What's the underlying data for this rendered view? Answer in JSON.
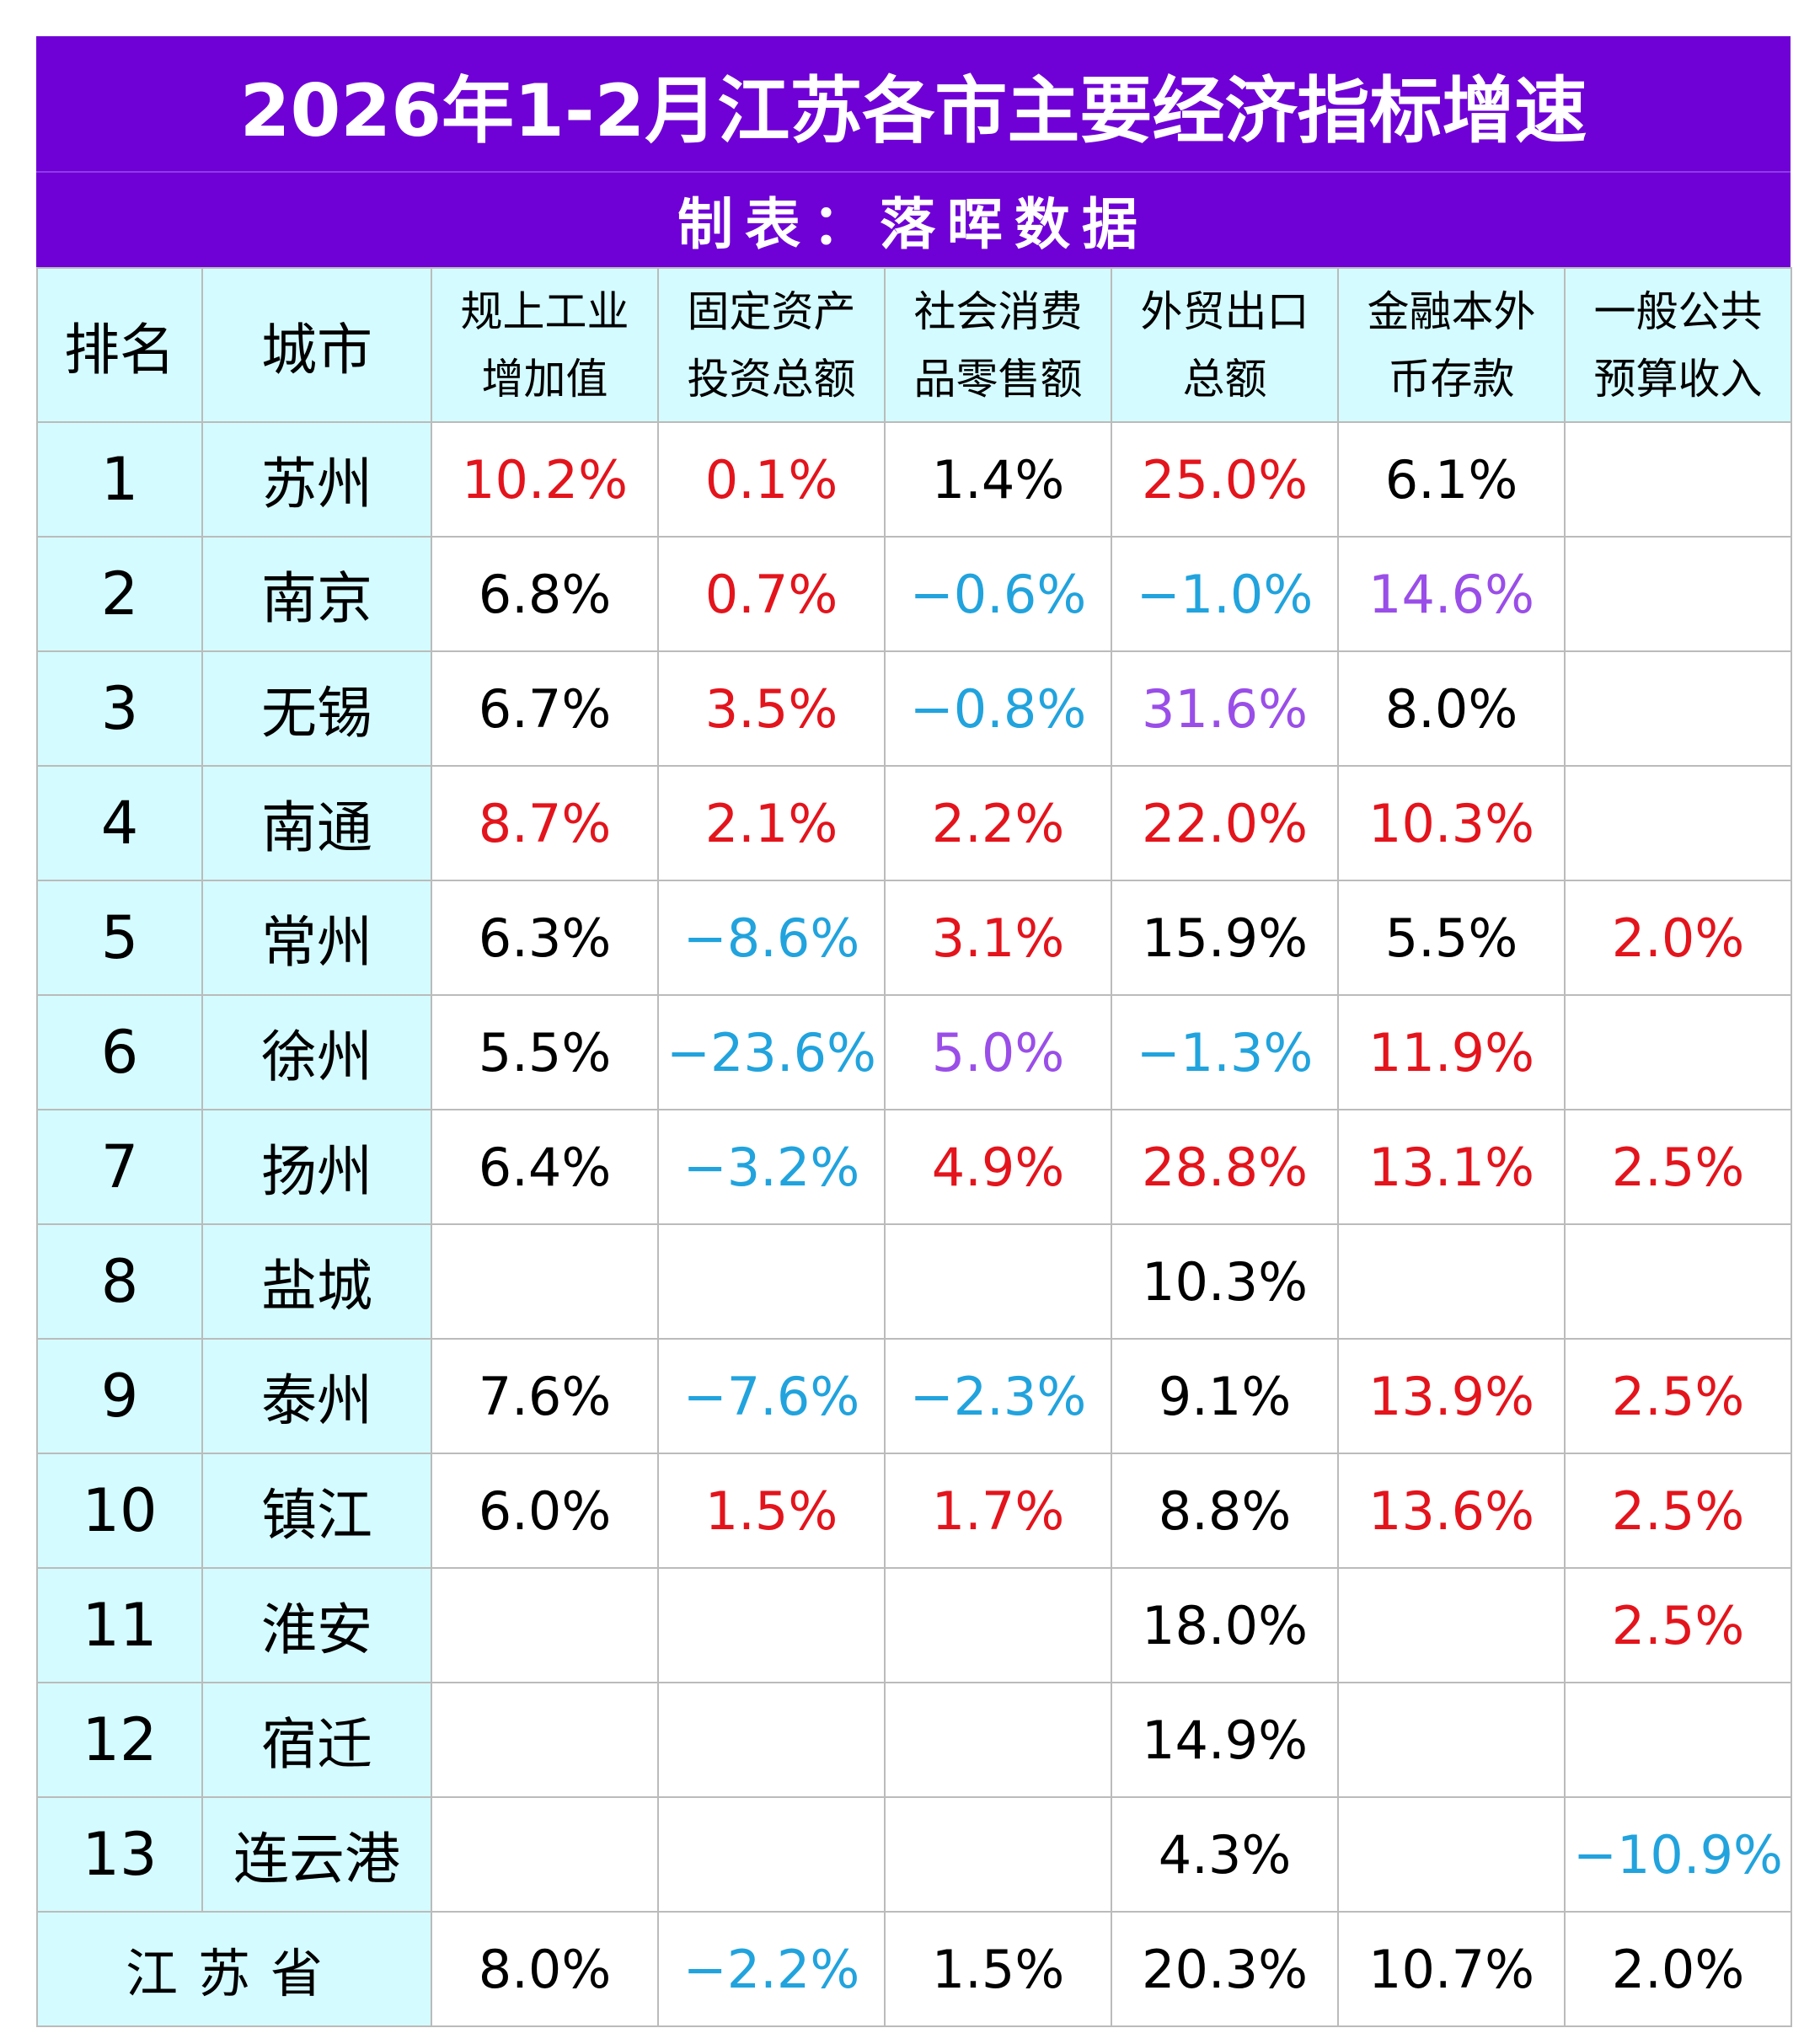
{
  "chart_data": {
    "type": "table",
    "title": "2026年1-2月江苏各市主要经济指标增速",
    "subtitle": "制表：落晖数据",
    "header": {
      "rank": "排名",
      "city": "城市",
      "columns": [
        [
          "规上工业",
          "增加值"
        ],
        [
          "固定资产",
          "投资总额"
        ],
        [
          "社会消费",
          "品零售额"
        ],
        [
          "外贸出口",
          "总额"
        ],
        [
          "金融本外",
          "币存款"
        ],
        [
          "一般公共",
          "预算收入"
        ]
      ]
    },
    "rows": [
      {
        "rank": "1",
        "city": "苏州",
        "cells": [
          [
            "10.2%",
            "r"
          ],
          [
            "0.1%",
            "r"
          ],
          [
            "1.4%",
            "k"
          ],
          [
            "25.0%",
            "r"
          ],
          [
            "6.1%",
            "k"
          ],
          [
            "",
            ""
          ]
        ]
      },
      {
        "rank": "2",
        "city": "南京",
        "cells": [
          [
            "6.8%",
            "k"
          ],
          [
            "0.7%",
            "r"
          ],
          [
            "−0.6%",
            "b"
          ],
          [
            "−1.0%",
            "b"
          ],
          [
            "14.6%",
            "p"
          ],
          [
            "",
            ""
          ]
        ]
      },
      {
        "rank": "3",
        "city": "无锡",
        "cells": [
          [
            "6.7%",
            "k"
          ],
          [
            "3.5%",
            "r"
          ],
          [
            "−0.8%",
            "b"
          ],
          [
            "31.6%",
            "p"
          ],
          [
            "8.0%",
            "k"
          ],
          [
            "",
            ""
          ]
        ]
      },
      {
        "rank": "4",
        "city": "南通",
        "cells": [
          [
            "8.7%",
            "r"
          ],
          [
            "2.1%",
            "r"
          ],
          [
            "2.2%",
            "r"
          ],
          [
            "22.0%",
            "r"
          ],
          [
            "10.3%",
            "r"
          ],
          [
            "",
            ""
          ]
        ]
      },
      {
        "rank": "5",
        "city": "常州",
        "cells": [
          [
            "6.3%",
            "k"
          ],
          [
            "−8.6%",
            "b"
          ],
          [
            "3.1%",
            "r"
          ],
          [
            "15.9%",
            "k"
          ],
          [
            "5.5%",
            "k"
          ],
          [
            "2.0%",
            "r"
          ]
        ]
      },
      {
        "rank": "6",
        "city": "徐州",
        "cells": [
          [
            "5.5%",
            "k"
          ],
          [
            "−23.6%",
            "b"
          ],
          [
            "5.0%",
            "p"
          ],
          [
            "−1.3%",
            "b"
          ],
          [
            "11.9%",
            "r"
          ],
          [
            "",
            ""
          ]
        ]
      },
      {
        "rank": "7",
        "city": "扬州",
        "cells": [
          [
            "6.4%",
            "k"
          ],
          [
            "−3.2%",
            "b"
          ],
          [
            "4.9%",
            "r"
          ],
          [
            "28.8%",
            "r"
          ],
          [
            "13.1%",
            "r"
          ],
          [
            "2.5%",
            "r"
          ]
        ]
      },
      {
        "rank": "8",
        "city": "盐城",
        "cells": [
          [
            "",
            ""
          ],
          [
            "",
            ""
          ],
          [
            "",
            ""
          ],
          [
            "10.3%",
            "k"
          ],
          [
            "",
            ""
          ],
          [
            "",
            ""
          ]
        ]
      },
      {
        "rank": "9",
        "city": "泰州",
        "cells": [
          [
            "7.6%",
            "k"
          ],
          [
            "−7.6%",
            "b"
          ],
          [
            "−2.3%",
            "b"
          ],
          [
            "9.1%",
            "k"
          ],
          [
            "13.9%",
            "r"
          ],
          [
            "2.5%",
            "r"
          ]
        ]
      },
      {
        "rank": "10",
        "city": "镇江",
        "cells": [
          [
            "6.0%",
            "k"
          ],
          [
            "1.5%",
            "r"
          ],
          [
            "1.7%",
            "r"
          ],
          [
            "8.8%",
            "k"
          ],
          [
            "13.6%",
            "r"
          ],
          [
            "2.5%",
            "r"
          ]
        ]
      },
      {
        "rank": "11",
        "city": "淮安",
        "cells": [
          [
            "",
            ""
          ],
          [
            "",
            ""
          ],
          [
            "",
            ""
          ],
          [
            "18.0%",
            "k"
          ],
          [
            "",
            ""
          ],
          [
            "2.5%",
            "r"
          ]
        ]
      },
      {
        "rank": "12",
        "city": "宿迁",
        "cells": [
          [
            "",
            ""
          ],
          [
            "",
            ""
          ],
          [
            "",
            ""
          ],
          [
            "14.9%",
            "k"
          ],
          [
            "",
            ""
          ],
          [
            "",
            ""
          ]
        ]
      },
      {
        "rank": "13",
        "city": "连云港",
        "cells": [
          [
            "",
            ""
          ],
          [
            "",
            ""
          ],
          [
            "",
            ""
          ],
          [
            "4.3%",
            "k"
          ],
          [
            "",
            ""
          ],
          [
            "−10.9%",
            "b"
          ]
        ]
      }
    ],
    "total": {
      "label": "江苏省",
      "cells": [
        [
          "8.0%",
          "k"
        ],
        [
          "−2.2%",
          "b"
        ],
        [
          "1.5%",
          "k"
        ],
        [
          "20.3%",
          "k"
        ],
        [
          "10.7%",
          "k"
        ],
        [
          "2.0%",
          "k"
        ]
      ]
    },
    "colors": {
      "header_bg": "#6f00d6",
      "label_bg": "#d4fbff",
      "positive_highlight": "#e3141c",
      "negative": "#21a3dd",
      "max_highlight": "#9a4ee8"
    }
  }
}
